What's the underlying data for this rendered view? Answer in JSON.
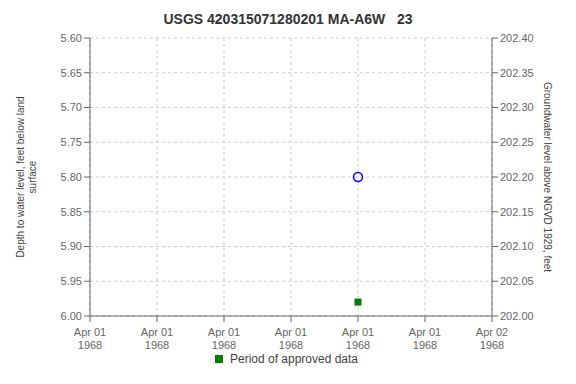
{
  "chart_data": {
    "type": "scatter",
    "title": "USGS 420315071280201 MA-A6W   23",
    "ylabel": "Depth to water level, feet below land\nsurface",
    "y2label": "Groundwater level above NGVD 1929, feet",
    "categories": [
      "Apr 01\n1968",
      "Apr 01\n1968",
      "Apr 01\n1968",
      "Apr 01\n1968",
      "Apr 01\n1968",
      "Apr 01\n1968",
      "Apr 02\n1968"
    ],
    "series": [
      {
        "color": "blue",
        "marker": "circle",
        "values": [
          null,
          null,
          null,
          null,
          5.8,
          null,
          null
        ]
      },
      {
        "name": "Period of approved data",
        "color": "#008000",
        "marker": "square",
        "values": [
          null,
          null,
          null,
          null,
          5.98,
          null,
          null
        ]
      }
    ],
    "ylim": [
      6.0,
      5.6
    ],
    "yticks": [
      {
        "value": 5.6,
        "label": "5.60"
      },
      {
        "value": 5.65,
        "label": "5.65"
      },
      {
        "value": 5.7,
        "label": "5.70"
      },
      {
        "value": 5.75,
        "label": "5.75"
      },
      {
        "value": 5.8,
        "label": "5.80"
      },
      {
        "value": 5.85,
        "label": "5.85"
      },
      {
        "value": 5.9,
        "label": "5.90"
      },
      {
        "value": 5.95,
        "label": "5.95"
      },
      {
        "value": 6.0,
        "label": "6.00"
      }
    ],
    "y2lim": [
      202.0,
      202.4
    ],
    "y2ticks": [
      {
        "value": 202.4,
        "label": "202.40"
      },
      {
        "value": 202.35,
        "label": "202.35"
      },
      {
        "value": 202.3,
        "label": "202.30"
      },
      {
        "value": 202.25,
        "label": "202.25"
      },
      {
        "value": 202.2,
        "label": "202.20"
      },
      {
        "value": 202.15,
        "label": "202.15"
      },
      {
        "value": 202.1,
        "label": "202.10"
      },
      {
        "value": 202.05,
        "label": "202.05"
      },
      {
        "value": 202.0,
        "label": "202.00"
      }
    ],
    "grid": true,
    "legend": "bottom"
  }
}
